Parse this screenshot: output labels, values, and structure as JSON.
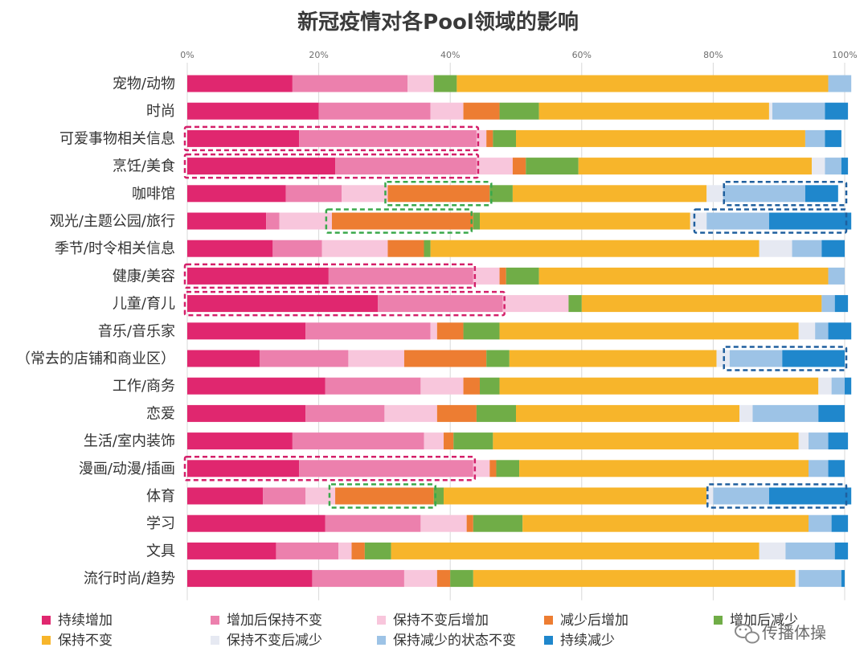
{
  "chart_data": {
    "type": "bar",
    "orientation": "horizontal",
    "stacked": "percent",
    "title": "新冠疫情对各Pool领域的影响",
    "xlim": [
      0,
      100
    ],
    "x_ticks": [
      "0%",
      "20%",
      "40%",
      "60%",
      "80%",
      "100%"
    ],
    "grid": true,
    "legend_position": "bottom",
    "categories": [
      "宠物/动物",
      "时尚",
      "可爱事物相关信息",
      "烹饪/美食",
      "咖啡馆",
      "观光/主题公园/旅行",
      "季节/时令相关信息",
      "健康/美容",
      "儿童/育儿",
      "音乐/音乐家",
      "（常去的店铺和商业区）",
      "工作/商务",
      "恋爱",
      "生活/室内装饰",
      "漫画/动漫/插画",
      "体育",
      "学习",
      "文具",
      "流行时尚/趋势"
    ],
    "series": [
      {
        "name": "持续增加",
        "color": "#e0276f",
        "values": [
          16,
          20,
          17,
          22.5,
          15,
          12,
          13,
          21.5,
          29,
          18,
          11,
          21,
          18,
          16,
          17,
          11.5,
          21,
          13.5,
          19
        ]
      },
      {
        "name": "增加后保持不变",
        "color": "#ec80ad",
        "values": [
          17.5,
          17,
          27,
          21.5,
          8.5,
          2,
          7.5,
          22,
          19,
          19,
          13.5,
          14.5,
          12,
          20,
          26.5,
          6.5,
          14.5,
          9.5,
          14
        ]
      },
      {
        "name": "保持不变后增加",
        "color": "#f8c6dc",
        "values": [
          4,
          5,
          1.5,
          5.5,
          7,
          8,
          10,
          4,
          10,
          1,
          8.5,
          6.5,
          8,
          3,
          2.5,
          4.5,
          7,
          2,
          5
        ]
      },
      {
        "name": "减少后增加",
        "color": "#ed7d32",
        "values": [
          0,
          5.5,
          1,
          2,
          15.5,
          21.5,
          5.5,
          1,
          0,
          4,
          12.5,
          2.5,
          6,
          1.5,
          1,
          15,
          1,
          2,
          2
        ]
      },
      {
        "name": "增加后减少",
        "color": "#70ad47",
        "values": [
          3.5,
          6,
          3.5,
          8,
          3.5,
          1,
          1,
          5,
          2,
          5.5,
          3.5,
          3,
          6,
          6,
          3.5,
          1.5,
          7.5,
          4,
          3.5
        ]
      },
      {
        "name": "保持不变",
        "color": "#f7b52b",
        "values": [
          56.5,
          35,
          44,
          35.5,
          29.5,
          32,
          50,
          44,
          36.5,
          45.5,
          31.5,
          48.5,
          34,
          46.5,
          44,
          40,
          43.5,
          56,
          49
        ]
      },
      {
        "name": "保持不变后减少",
        "color": "#e6e9f2",
        "values": [
          0,
          0.5,
          0,
          2,
          2.5,
          2.5,
          5,
          0,
          0,
          2.5,
          2,
          2,
          2,
          1.5,
          0,
          1,
          0,
          4,
          0.5
        ]
      },
      {
        "name": "保持减少的状态不变",
        "color": "#9dc3e6",
        "values": [
          3.5,
          8,
          3,
          2.5,
          12.5,
          9.5,
          4.5,
          2.5,
          2,
          2,
          8,
          2,
          10,
          3,
          3,
          8.5,
          3.5,
          7.5,
          6.5
        ]
      },
      {
        "name": "持续减少",
        "color": "#1f87cc",
        "values": [
          0,
          3.5,
          2.5,
          1,
          5,
          12.5,
          3.5,
          0,
          2,
          3.5,
          9.5,
          1,
          4,
          3,
          2.5,
          12.5,
          2.5,
          2,
          0.5
        ]
      }
    ],
    "highlights": [
      {
        "category_index": 2,
        "from": 0,
        "to": 44,
        "color": "#d4206a"
      },
      {
        "category_index": 3,
        "from": 0,
        "to": 44,
        "color": "#d4206a"
      },
      {
        "category_index": 7,
        "from": 0,
        "to": 43.5,
        "color": "#d4206a"
      },
      {
        "category_index": 8,
        "from": 0,
        "to": 48,
        "color": "#d4206a"
      },
      {
        "category_index": 14,
        "from": 0,
        "to": 43.5,
        "color": "#d4206a"
      },
      {
        "category_index": 4,
        "from": 30.5,
        "to": 46,
        "color": "#3aa84b"
      },
      {
        "category_index": 5,
        "from": 21.5,
        "to": 43,
        "color": "#3aa84b"
      },
      {
        "category_index": 15,
        "from": 22,
        "to": 37.5,
        "color": "#3aa84b"
      },
      {
        "category_index": 4,
        "from": 82,
        "to": 100,
        "color": "#1f5f9e"
      },
      {
        "category_index": 5,
        "from": 77.5,
        "to": 100,
        "color": "#1f5f9e"
      },
      {
        "category_index": 10,
        "from": 82,
        "to": 100,
        "color": "#1f5f9e"
      },
      {
        "category_index": 15,
        "from": 79.5,
        "to": 100,
        "color": "#1f5f9e"
      }
    ],
    "legend_order": [
      "持续增加",
      "增加后保持不变",
      "保持不变后增加",
      "减少后增加",
      "增加后减少",
      "保持不变",
      "保持不变后减少",
      "保持减少的状态不变",
      "持续减少"
    ]
  },
  "watermark": {
    "text": "传播体操",
    "icon": "wechat-icon"
  }
}
